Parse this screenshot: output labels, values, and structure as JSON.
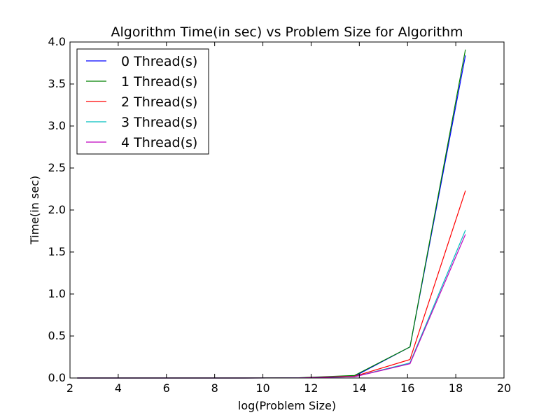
{
  "chart_data": {
    "type": "line",
    "title": "Algorithm Time(in sec) vs Problem Size for Algorithm",
    "xlabel": "log(Problem Size)",
    "ylabel": "Time(in sec)",
    "xlim": [
      2,
      20
    ],
    "ylim": [
      0,
      4.0
    ],
    "x_ticks": [
      "2",
      "4",
      "6",
      "8",
      "10",
      "12",
      "14",
      "16",
      "18",
      "20"
    ],
    "y_ticks": [
      "0.0",
      "0.5",
      "1.0",
      "1.5",
      "2.0",
      "2.5",
      "3.0",
      "3.5",
      "4.0"
    ],
    "legend_position": "top-left",
    "x": [
      2.3,
      4.6,
      6.9,
      9.2,
      11.5,
      13.8,
      16.1,
      18.4
    ],
    "series": [
      {
        "name": "0 Thread(s)",
        "color": "#0000ff",
        "values": [
          0.0,
          0.0,
          0.0,
          0.0,
          0.002,
          0.02,
          0.37,
          3.84
        ]
      },
      {
        "name": "1 Thread(s)",
        "color": "#008000",
        "values": [
          0.0,
          0.0,
          0.0,
          0.0,
          0.003,
          0.03,
          0.37,
          3.91
        ]
      },
      {
        "name": "2 Thread(s)",
        "color": "#ff0000",
        "values": [
          0.0,
          0.0,
          0.0,
          0.0,
          0.002,
          0.02,
          0.22,
          2.23
        ]
      },
      {
        "name": "3 Thread(s)",
        "color": "#00bfbf",
        "values": [
          0.0,
          0.0,
          0.0,
          0.0,
          0.002,
          0.015,
          0.18,
          1.76
        ]
      },
      {
        "name": "4 Thread(s)",
        "color": "#bf00bf",
        "values": [
          0.0,
          0.0,
          0.0,
          0.0,
          0.002,
          0.015,
          0.17,
          1.71
        ]
      }
    ]
  }
}
